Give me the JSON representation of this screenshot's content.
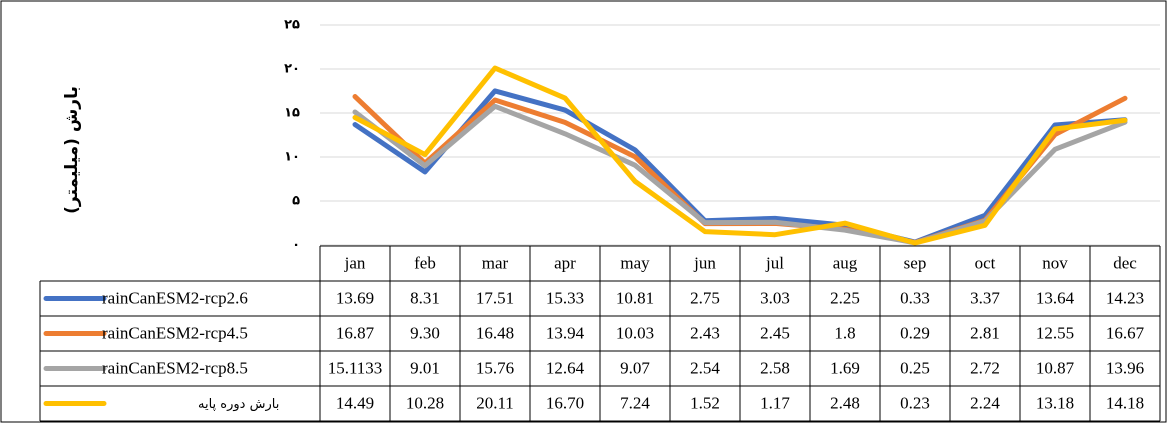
{
  "chart_data": {
    "type": "line",
    "y_label": "بارش (میلیمتر)",
    "categories": [
      "jan",
      "feb",
      "mar",
      "apr",
      "may",
      "jun",
      "jul",
      "aug",
      "sep",
      "oct",
      "nov",
      "dec"
    ],
    "ylim": [
      0,
      25
    ],
    "yticks": [
      {
        "value": 0,
        "label": "۰"
      },
      {
        "value": 5,
        "label": "۵"
      },
      {
        "value": 10,
        "label": "۱۰"
      },
      {
        "value": 15,
        "label": "۱۵"
      },
      {
        "value": 20,
        "label": "۲۰"
      },
      {
        "value": 25,
        "label": "۲۵"
      }
    ],
    "grid": true,
    "series": [
      {
        "name": "rainCanESM2-rcp2.6",
        "color": "#4472c4",
        "values": [
          13.69,
          8.31,
          17.51,
          15.33,
          10.81,
          2.75,
          3.03,
          2.25,
          0.33,
          3.37,
          13.64,
          14.23
        ],
        "value_labels": [
          "13.69",
          "8.31",
          "17.51",
          "15.33",
          "10.81",
          "2.75",
          "3.03",
          "2.25",
          "0.33",
          "3.37",
          "13.64",
          "14.23"
        ]
      },
      {
        "name": "rainCanESM2-rcp4.5",
        "color": "#ed7d31",
        "values": [
          16.87,
          9.3,
          16.48,
          13.94,
          10.03,
          2.43,
          2.45,
          1.8,
          0.29,
          2.81,
          12.55,
          16.67
        ],
        "value_labels": [
          "16.87",
          "9.30",
          "16.48",
          "13.94",
          "10.03",
          "2.43",
          "2.45",
          "1.8",
          "0.29",
          "2.81",
          "12.55",
          "16.67"
        ]
      },
      {
        "name": "rainCanESM2-rcp8.5",
        "color": "#a5a5a5",
        "values": [
          15.1133,
          9.01,
          15.76,
          12.64,
          9.07,
          2.54,
          2.58,
          1.69,
          0.25,
          2.72,
          10.87,
          13.96
        ],
        "value_labels": [
          "15.1133",
          "9.01",
          "15.76",
          "12.64",
          "9.07",
          "2.54",
          "2.58",
          "1.69",
          "0.25",
          "2.72",
          "10.87",
          "13.96"
        ]
      },
      {
        "name": "بارش دوره پایه",
        "color": "#ffc000",
        "values": [
          14.49,
          10.28,
          20.11,
          16.7,
          7.24,
          1.52,
          1.17,
          2.48,
          0.23,
          2.24,
          13.18,
          14.18
        ],
        "value_labels": [
          "14.49",
          "10.28",
          "20.11",
          "16.70",
          "7.24",
          "1.52",
          "1.17",
          "2.48",
          "0.23",
          "2.24",
          "13.18",
          "14.18"
        ]
      }
    ]
  }
}
